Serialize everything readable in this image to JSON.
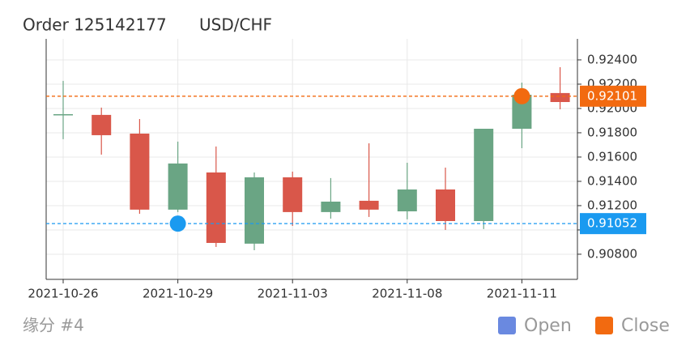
{
  "chart_data": {
    "type": "candlestick",
    "title": "Order 125142177",
    "subtitle": "USD/CHF",
    "footer": "缘分 #4",
    "categories": [
      "2021-10-26",
      null,
      null,
      "2021-10-29",
      null,
      null,
      "2021-11-03",
      null,
      null,
      "2021-11-08",
      null,
      null,
      "2021-11-11",
      null
    ],
    "open": [
      0.91953,
      0.91947,
      0.91793,
      0.91167,
      0.91473,
      0.90887,
      0.91433,
      0.91147,
      0.9124,
      0.91153,
      0.91333,
      0.91073,
      0.91833,
      0.92127
    ],
    "high": [
      0.92227,
      0.92007,
      0.91913,
      0.91727,
      0.91687,
      0.91473,
      0.9148,
      0.91427,
      0.91713,
      0.91553,
      0.91513,
      0.91833,
      0.92213,
      0.9234
    ],
    "low": [
      0.91747,
      0.9162,
      0.91133,
      0.91147,
      0.9086,
      0.90833,
      0.91033,
      0.91093,
      0.91107,
      0.91087,
      0.91,
      0.91007,
      0.91673,
      0.91993
    ],
    "close": [
      0.91953,
      0.9178,
      0.91167,
      0.91547,
      0.90893,
      0.91433,
      0.91147,
      0.91233,
      0.91167,
      0.91333,
      0.91073,
      0.91833,
      0.92113,
      0.92053
    ],
    "up_color": "#6aa584",
    "down_color": "#d9574a",
    "ylim": [
      0.90593,
      0.92573
    ],
    "yticks": [
      {
        "value": 0.908,
        "label": "0.90800"
      },
      {
        "value": 0.91,
        "label": "0.91000"
      },
      {
        "value": 0.912,
        "label": "0.91200"
      },
      {
        "value": 0.914,
        "label": "0.91400"
      },
      {
        "value": 0.916,
        "label": "0.91600"
      },
      {
        "value": 0.918,
        "label": "0.91800"
      },
      {
        "value": 0.92,
        "label": "0.92000"
      },
      {
        "value": 0.922,
        "label": "0.92200"
      },
      {
        "value": 0.924,
        "label": "0.92400"
      }
    ],
    "grid": true,
    "markers": [
      {
        "name": "Open",
        "value": 0.91052,
        "x": "2021-10-29",
        "color": "#1a9af0",
        "legend_color": "#6a89e0"
      },
      {
        "name": "Close",
        "value": 0.92101,
        "x": "2021-11-11",
        "color": "#f26a10",
        "legend_color": "#f26a10"
      }
    ]
  }
}
